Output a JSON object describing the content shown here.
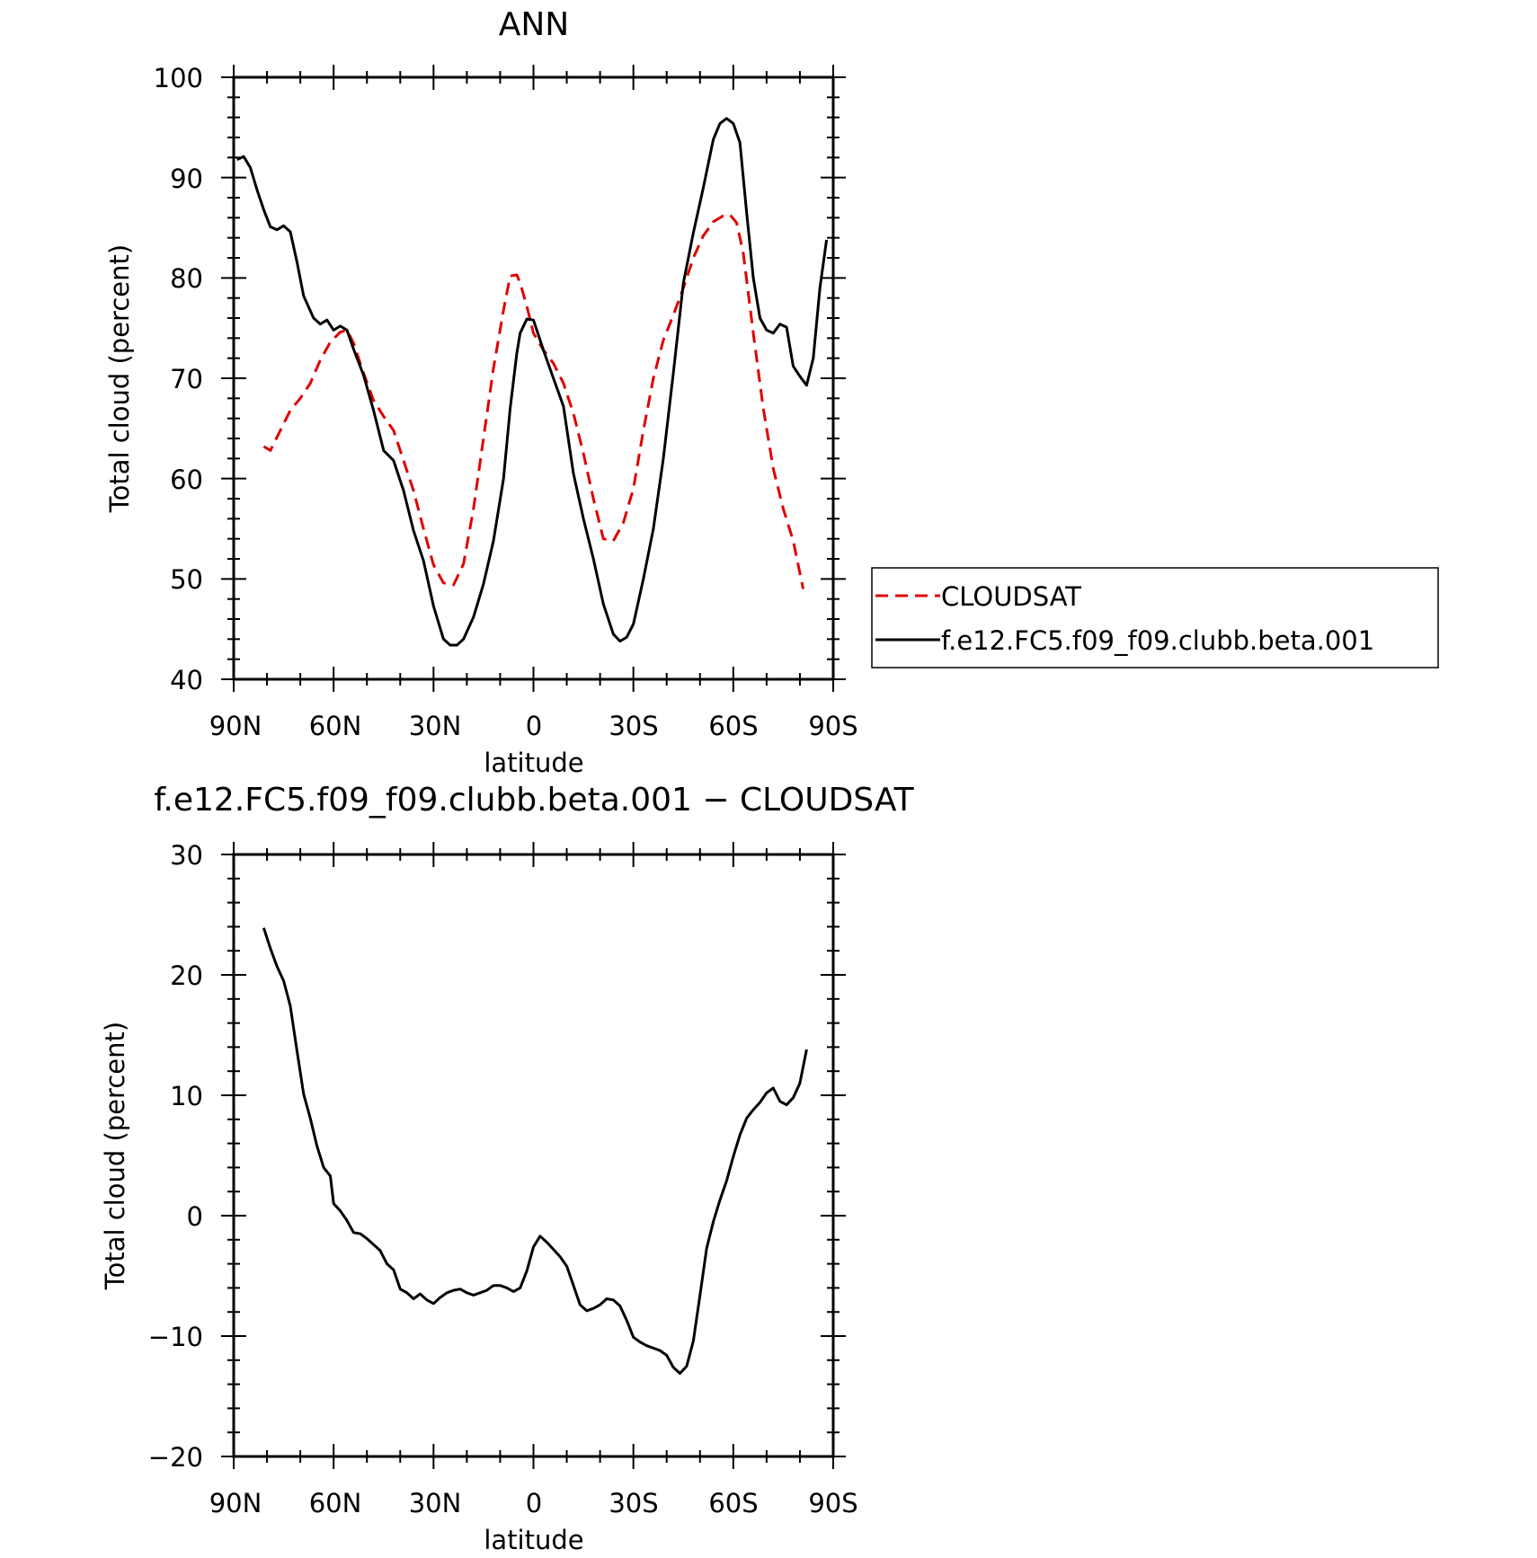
{
  "charts": [
    {
      "title": "ANN",
      "xlabel": "latitude",
      "ylabel": "Total cloud (percent)",
      "yticks": [
        "100",
        "90",
        "80",
        "70",
        "60",
        "50",
        "40"
      ],
      "xticks": [
        "90N",
        "60N",
        "30N",
        "0",
        "30S",
        "60S",
        "90S"
      ]
    },
    {
      "title": "f.e12.FC5.f09_f09.clubb.beta.001 − CLOUDSAT",
      "xlabel": "latitude",
      "ylabel": "Total cloud (percent)",
      "yticks": [
        "30",
        "20",
        "10",
        "0",
        "−10",
        "−20"
      ],
      "xticks": [
        "90N",
        "60N",
        "30N",
        "0",
        "30S",
        "60S",
        "90S"
      ]
    }
  ],
  "legend": {
    "items": [
      {
        "label": "CLOUDSAT",
        "color": "#e00000",
        "dash": "dashed"
      },
      {
        "label": "f.e12.FC5.f09_f09.clubb.beta.001",
        "color": "#000000",
        "dash": "solid"
      }
    ]
  },
  "chart_data": [
    {
      "type": "line",
      "title": "ANN",
      "xlabel": "latitude",
      "ylabel": "Total cloud (percent)",
      "x_axis": "latitude, 90 = 90N ... -90 = 90S (plotted north to south)",
      "xlim": [
        90,
        -90
      ],
      "ylim": [
        40,
        100
      ],
      "series": [
        {
          "name": "CLOUDSAT",
          "color": "#e00000",
          "dash": "dashed",
          "x": [
            81,
            79,
            76,
            73,
            70,
            67,
            64,
            61,
            58,
            56,
            54,
            51,
            48,
            45,
            42,
            39,
            36,
            33,
            30,
            27,
            24,
            21,
            18,
            15,
            12,
            9,
            7,
            5,
            4,
            2,
            0,
            -3,
            -6,
            -9,
            -12,
            -15,
            -18,
            -21,
            -24,
            -27,
            -30,
            -33,
            -36,
            -39,
            -42,
            -45,
            -48,
            -51,
            -54,
            -57,
            -59,
            -61,
            -63,
            -66,
            -69,
            -72,
            -75,
            -78,
            -81
          ],
          "y": [
            63.2,
            62.8,
            64.8,
            66.8,
            68.0,
            69.5,
            71.8,
            73.6,
            74.6,
            74.8,
            73.5,
            70.5,
            67.8,
            66.2,
            64.8,
            61.8,
            58.8,
            55.0,
            51.4,
            49.6,
            49.4,
            51.5,
            57.0,
            64.0,
            71.0,
            76.8,
            80.2,
            80.3,
            79.5,
            77.2,
            74.5,
            72.8,
            71.5,
            69.5,
            66.5,
            62.5,
            58.0,
            54.0,
            53.8,
            55.6,
            59.0,
            64.8,
            70.0,
            73.8,
            76.3,
            79.0,
            82.0,
            84.2,
            85.6,
            86.2,
            86.3,
            85.5,
            82.5,
            74.5,
            67.0,
            61.0,
            57.0,
            53.8,
            49.0
          ]
        },
        {
          "name": "f.e12.FC5.f09_f09.clubb.beta.001",
          "color": "#000000",
          "dash": "solid",
          "x": [
            89,
            87,
            85,
            83,
            81,
            79,
            77,
            75,
            73,
            71,
            69,
            66,
            64,
            62,
            60,
            58,
            56,
            54,
            51,
            48,
            45,
            42,
            39,
            36,
            33,
            30,
            27,
            25,
            23,
            21,
            18,
            15,
            12,
            9,
            7,
            5,
            4,
            2,
            0,
            -3,
            -6,
            -9,
            -12,
            -15,
            -18,
            -21,
            -24,
            -26,
            -28,
            -30,
            -33,
            -36,
            -39,
            -42,
            -45,
            -48,
            -51,
            -54,
            -56,
            -58,
            -60,
            -62,
            -64,
            -66,
            -68,
            -70,
            -72,
            -74,
            -76,
            -78,
            -80,
            -82,
            -84,
            -86,
            -88
          ],
          "y": [
            91.8,
            92.1,
            91.0,
            88.8,
            86.8,
            85.1,
            84.8,
            85.2,
            84.6,
            81.6,
            78.2,
            76.0,
            75.4,
            75.8,
            74.8,
            75.2,
            74.8,
            72.9,
            70.3,
            66.8,
            62.8,
            61.8,
            58.8,
            54.8,
            51.8,
            47.3,
            44.0,
            43.4,
            43.4,
            44.0,
            46.2,
            49.5,
            53.8,
            60.0,
            67.0,
            72.5,
            74.5,
            75.9,
            75.8,
            72.8,
            70.0,
            67.2,
            60.5,
            56.0,
            52.0,
            47.5,
            44.5,
            43.8,
            44.2,
            45.5,
            50.0,
            55.0,
            62.0,
            70.5,
            79.5,
            84.5,
            89.0,
            93.8,
            95.4,
            95.9,
            95.4,
            93.5,
            86.5,
            80.0,
            76.0,
            74.8,
            74.5,
            75.4,
            75.1,
            71.2,
            70.2,
            69.3,
            72.0,
            79.0,
            83.8
          ]
        }
      ]
    },
    {
      "type": "line",
      "title": "f.e12.FC5.f09_f09.clubb.beta.001 − CLOUDSAT",
      "xlabel": "latitude",
      "ylabel": "Total cloud (percent)",
      "x_axis": "latitude, 90 = 90N ... -90 = 90S (plotted north to south)",
      "xlim": [
        90,
        -90
      ],
      "ylim": [
        -20,
        30
      ],
      "series": [
        {
          "color": "#000000",
          "dash": "solid",
          "x": [
            81,
            79,
            77,
            75,
            73,
            71,
            69,
            67,
            65,
            63,
            61,
            60,
            58,
            56,
            54,
            52,
            50,
            48,
            46,
            44,
            42,
            40,
            38,
            36,
            34,
            32,
            30,
            28,
            26,
            24,
            22,
            20,
            18,
            16,
            14,
            12,
            10,
            8,
            6,
            4,
            2,
            0,
            -2,
            -4,
            -6,
            -8,
            -10,
            -12,
            -14,
            -16,
            -18,
            -20,
            -22,
            -24,
            -26,
            -28,
            -30,
            -32,
            -34,
            -36,
            -38,
            -40,
            -42,
            -44,
            -46,
            -48,
            -50,
            -52,
            -54,
            -56,
            -58,
            -60,
            -62,
            -64,
            -66,
            -68,
            -70,
            -72,
            -74,
            -76,
            -78,
            -80,
            -82
          ],
          "y": [
            23.9,
            22.2,
            20.7,
            19.5,
            17.4,
            13.7,
            10.1,
            8.1,
            5.8,
            4.0,
            3.3,
            1.0,
            0.4,
            -0.4,
            -1.4,
            -1.5,
            -1.9,
            -2.4,
            -2.9,
            -4.0,
            -4.5,
            -6.1,
            -6.4,
            -6.9,
            -6.5,
            -7.0,
            -7.3,
            -6.8,
            -6.4,
            -6.2,
            -6.1,
            -6.4,
            -6.6,
            -6.4,
            -6.2,
            -5.8,
            -5.8,
            -6.0,
            -6.3,
            -6.0,
            -4.6,
            -2.6,
            -1.7,
            -2.2,
            -2.8,
            -3.4,
            -4.2,
            -5.8,
            -7.4,
            -7.9,
            -7.7,
            -7.4,
            -6.9,
            -7.0,
            -7.5,
            -8.7,
            -10.1,
            -10.5,
            -10.8,
            -11.0,
            -11.2,
            -11.6,
            -12.6,
            -13.1,
            -12.5,
            -10.4,
            -6.6,
            -2.7,
            -0.5,
            1.3,
            2.9,
            4.9,
            6.7,
            8.1,
            8.8,
            9.4,
            10.2,
            10.6,
            9.5,
            9.2,
            9.8,
            11.0,
            13.8
          ]
        }
      ]
    }
  ]
}
